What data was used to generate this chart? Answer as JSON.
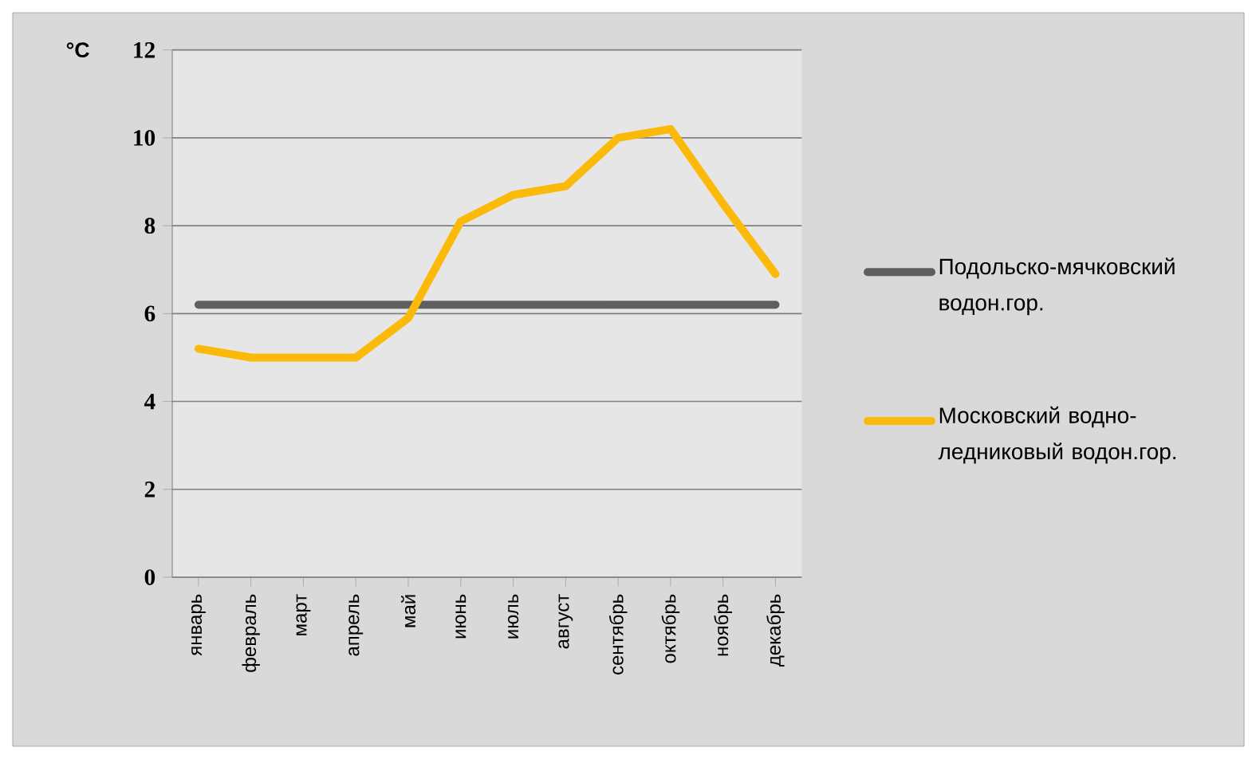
{
  "chart_data": {
    "type": "line",
    "ylabel": "°C",
    "categories": [
      "январь",
      "февраль",
      "март",
      "апрель",
      "май",
      "июнь",
      "июль",
      "август",
      "сентябрь",
      "октябрь",
      "ноябрь",
      "декабрь"
    ],
    "series": [
      {
        "name": "Подольско-мячковский водон.гор.",
        "color": "#5f5f5f",
        "values": [
          6.2,
          6.2,
          6.2,
          6.2,
          6.2,
          6.2,
          6.2,
          6.2,
          6.2,
          6.2,
          6.2,
          6.2
        ]
      },
      {
        "name": "Московский водно-ледниковый водон.гор.",
        "color": "#fbb909",
        "values": [
          5.2,
          5.0,
          5.0,
          5.0,
          5.9,
          8.1,
          8.7,
          8.9,
          10.0,
          10.2,
          8.5,
          6.9
        ]
      }
    ],
    "ylim": [
      0,
      12
    ],
    "yticks": [
      0,
      2,
      4,
      6,
      8,
      10,
      12
    ],
    "grid": "y",
    "legend": "right",
    "marker": "none",
    "line_style": "solid"
  }
}
